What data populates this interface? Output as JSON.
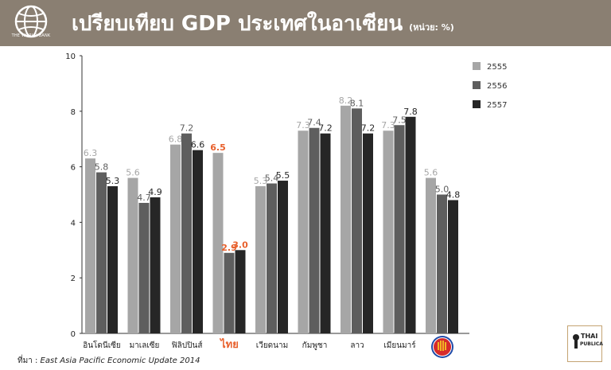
{
  "header": {
    "title": "เปรียบเทียบ GDP ประเทศในอาเซียน",
    "unit": "(หน่วย: %)",
    "logo_text": "THE WORLD BANK"
  },
  "source": {
    "label": "ที่มา :",
    "text": "East Asia Pacific Economic Update 2014"
  },
  "brand": {
    "line1": "THAI",
    "line2": "PUBLICA"
  },
  "colors": {
    "s2555": "#a6a6a6",
    "s2556": "#5e5e5e",
    "s2557": "#262626",
    "highlight": "#e8602c",
    "header": "#8a7f72"
  },
  "chart_data": {
    "type": "bar",
    "categories": [
      "อินโดนีเซีย",
      "มาเลเซีย",
      "ฟิลิปปินส์",
      "ไทย",
      "เวียดนาม",
      "กัมพูชา",
      "ลาว",
      "เมียนมาร์",
      "ASEAN"
    ],
    "series": [
      {
        "name": "2555",
        "values": [
          6.3,
          5.6,
          6.8,
          6.5,
          5.3,
          7.3,
          8.2,
          7.3,
          5.6
        ],
        "labels": [
          "6.3",
          "5.6",
          "6.8",
          "6.5",
          "5.3",
          "7.3",
          "8.2",
          "7.3",
          "5.6"
        ]
      },
      {
        "name": "2556",
        "values": [
          5.8,
          4.7,
          7.2,
          2.9,
          5.4,
          7.4,
          8.1,
          7.5,
          5.0
        ],
        "labels": [
          "5.8",
          "4.7",
          "7.2",
          "2.9",
          "5.4",
          "7.4",
          "8.1",
          "7.5",
          "5.0"
        ]
      },
      {
        "name": "2557",
        "values": [
          5.3,
          4.9,
          6.6,
          3.0,
          5.5,
          7.2,
          7.2,
          7.8,
          4.8
        ],
        "labels": [
          "5.3",
          "4.9",
          "6.6",
          "3.0",
          "5.5",
          "7.2",
          "7.2",
          "7.8",
          "4.8"
        ]
      }
    ],
    "yticks": [
      0,
      2,
      4,
      6,
      8,
      10
    ],
    "ylim": [
      0,
      10
    ],
    "highlight_category": "ไทย",
    "icon_category": "ASEAN",
    "legend_position": "top-right",
    "grid": false,
    "xlabel": "",
    "ylabel": ""
  }
}
